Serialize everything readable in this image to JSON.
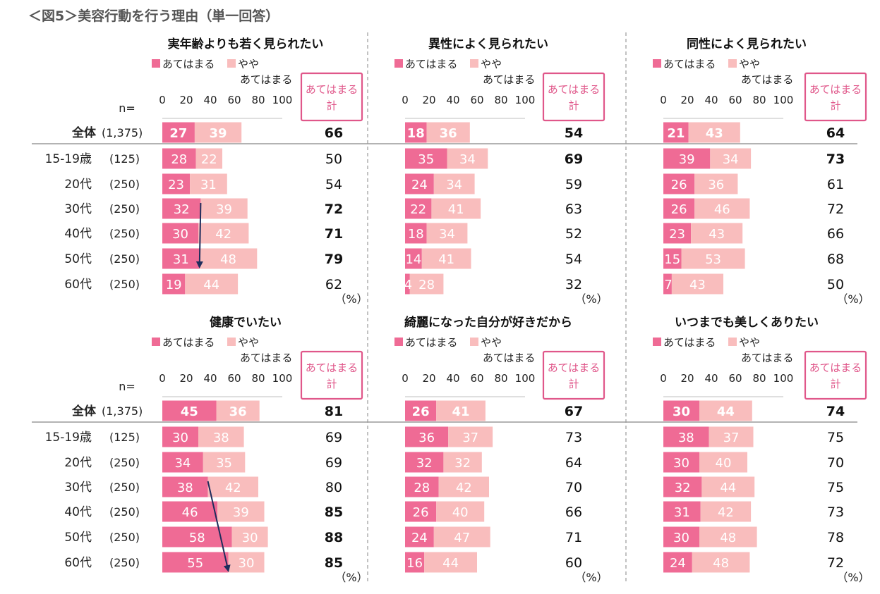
{
  "page_title": "＜図5＞美容行動を行う理由（単一回答）",
  "colors": {
    "strong": "#ef6b95",
    "weak": "#f9bdbd",
    "highlight": "#ef6b95",
    "box": "#e0578a",
    "arrow": "#1f2d5c"
  },
  "n_label": "n=",
  "pct_label": "（%）",
  "total_box_label": [
    "あてはまる",
    "計"
  ],
  "rows": [
    {
      "label": "全体",
      "n": "(1,375)"
    },
    {
      "label": "15-19歳",
      "n": "(125)"
    },
    {
      "label": "20代",
      "n": "(250)"
    },
    {
      "label": "30代",
      "n": "(250)"
    },
    {
      "label": "40代",
      "n": "(250)"
    },
    {
      "label": "50代",
      "n": "(250)"
    },
    {
      "label": "60代",
      "n": "(250)"
    }
  ],
  "legend": {
    "strong": "あてはまる",
    "weak_line1": "やや",
    "weak_line2": "あてはまる"
  },
  "axis_ticks": [
    "0",
    "20",
    "40",
    "60",
    "80",
    "100"
  ],
  "chart_data": [
    {
      "type": "bar",
      "stacked": true,
      "title": "実年齢よりも若く見られたい",
      "categories": [
        "全体",
        "15-19歳",
        "20代",
        "30代",
        "40代",
        "50代",
        "60代"
      ],
      "series": [
        {
          "name": "あてはまる",
          "values": [
            27,
            28,
            23,
            32,
            30,
            31,
            19
          ]
        },
        {
          "name": "ややあてはまる",
          "values": [
            39,
            22,
            31,
            39,
            42,
            48,
            44
          ]
        }
      ],
      "totals": [
        66,
        50,
        54,
        72,
        71,
        79,
        62
      ],
      "highlight": [
        false,
        false,
        false,
        true,
        true,
        true,
        false
      ],
      "xlim": [
        0,
        100
      ],
      "arrow": {
        "from_row": 3,
        "to_row": 5
      }
    },
    {
      "type": "bar",
      "stacked": true,
      "title": "異性によく見られたい",
      "categories": [
        "全体",
        "15-19歳",
        "20代",
        "30代",
        "40代",
        "50代",
        "60代"
      ],
      "series": [
        {
          "name": "あてはまる",
          "values": [
            18,
            35,
            24,
            22,
            18,
            14,
            4
          ]
        },
        {
          "name": "ややあてはまる",
          "values": [
            36,
            34,
            34,
            41,
            34,
            41,
            28
          ]
        }
      ],
      "totals": [
        54,
        69,
        59,
        63,
        52,
        54,
        32
      ],
      "highlight": [
        false,
        true,
        false,
        false,
        false,
        false,
        false
      ],
      "xlim": [
        0,
        100
      ]
    },
    {
      "type": "bar",
      "stacked": true,
      "title": "同性によく見られたい",
      "categories": [
        "全体",
        "15-19歳",
        "20代",
        "30代",
        "40代",
        "50代",
        "60代"
      ],
      "series": [
        {
          "name": "あてはまる",
          "values": [
            21,
            39,
            26,
            26,
            23,
            15,
            7
          ]
        },
        {
          "name": "ややあてはまる",
          "values": [
            43,
            34,
            36,
            46,
            43,
            53,
            43
          ]
        }
      ],
      "totals": [
        64,
        73,
        61,
        72,
        66,
        68,
        50
      ],
      "highlight": [
        false,
        true,
        false,
        false,
        false,
        false,
        false
      ],
      "xlim": [
        0,
        100
      ]
    },
    {
      "type": "bar",
      "stacked": true,
      "title": "健康でいたい",
      "categories": [
        "全体",
        "15-19歳",
        "20代",
        "30代",
        "40代",
        "50代",
        "60代"
      ],
      "series": [
        {
          "name": "あてはまる",
          "values": [
            45,
            30,
            34,
            38,
            46,
            58,
            55
          ]
        },
        {
          "name": "ややあてはまる",
          "values": [
            36,
            38,
            35,
            42,
            39,
            30,
            30
          ]
        }
      ],
      "totals": [
        81,
        69,
        69,
        80,
        85,
        88,
        85
      ],
      "highlight": [
        false,
        false,
        false,
        false,
        true,
        true,
        true
      ],
      "xlim": [
        0,
        100
      ],
      "arrow": {
        "from_row": 3,
        "to_row": 6
      }
    },
    {
      "type": "bar",
      "stacked": true,
      "title": "綺麗になった自分が好きだから",
      "categories": [
        "全体",
        "15-19歳",
        "20代",
        "30代",
        "40代",
        "50代",
        "60代"
      ],
      "series": [
        {
          "name": "あてはまる",
          "values": [
            26,
            36,
            32,
            28,
            26,
            24,
            16
          ]
        },
        {
          "name": "ややあてはまる",
          "values": [
            41,
            37,
            32,
            42,
            40,
            47,
            44
          ]
        }
      ],
      "totals": [
        67,
        73,
        64,
        70,
        66,
        71,
        60
      ],
      "highlight": [
        false,
        false,
        false,
        false,
        false,
        false,
        false
      ],
      "xlim": [
        0,
        100
      ]
    },
    {
      "type": "bar",
      "stacked": true,
      "title": "いつまでも美しくありたい",
      "categories": [
        "全体",
        "15-19歳",
        "20代",
        "30代",
        "40代",
        "50代",
        "60代"
      ],
      "series": [
        {
          "name": "あてはまる",
          "values": [
            30,
            38,
            30,
            32,
            31,
            30,
            24
          ]
        },
        {
          "name": "ややあてはまる",
          "values": [
            44,
            37,
            40,
            44,
            42,
            48,
            48
          ]
        }
      ],
      "totals": [
        74,
        75,
        70,
        75,
        73,
        78,
        72
      ],
      "highlight": [
        false,
        false,
        false,
        false,
        false,
        false,
        false
      ],
      "xlim": [
        0,
        100
      ]
    }
  ]
}
